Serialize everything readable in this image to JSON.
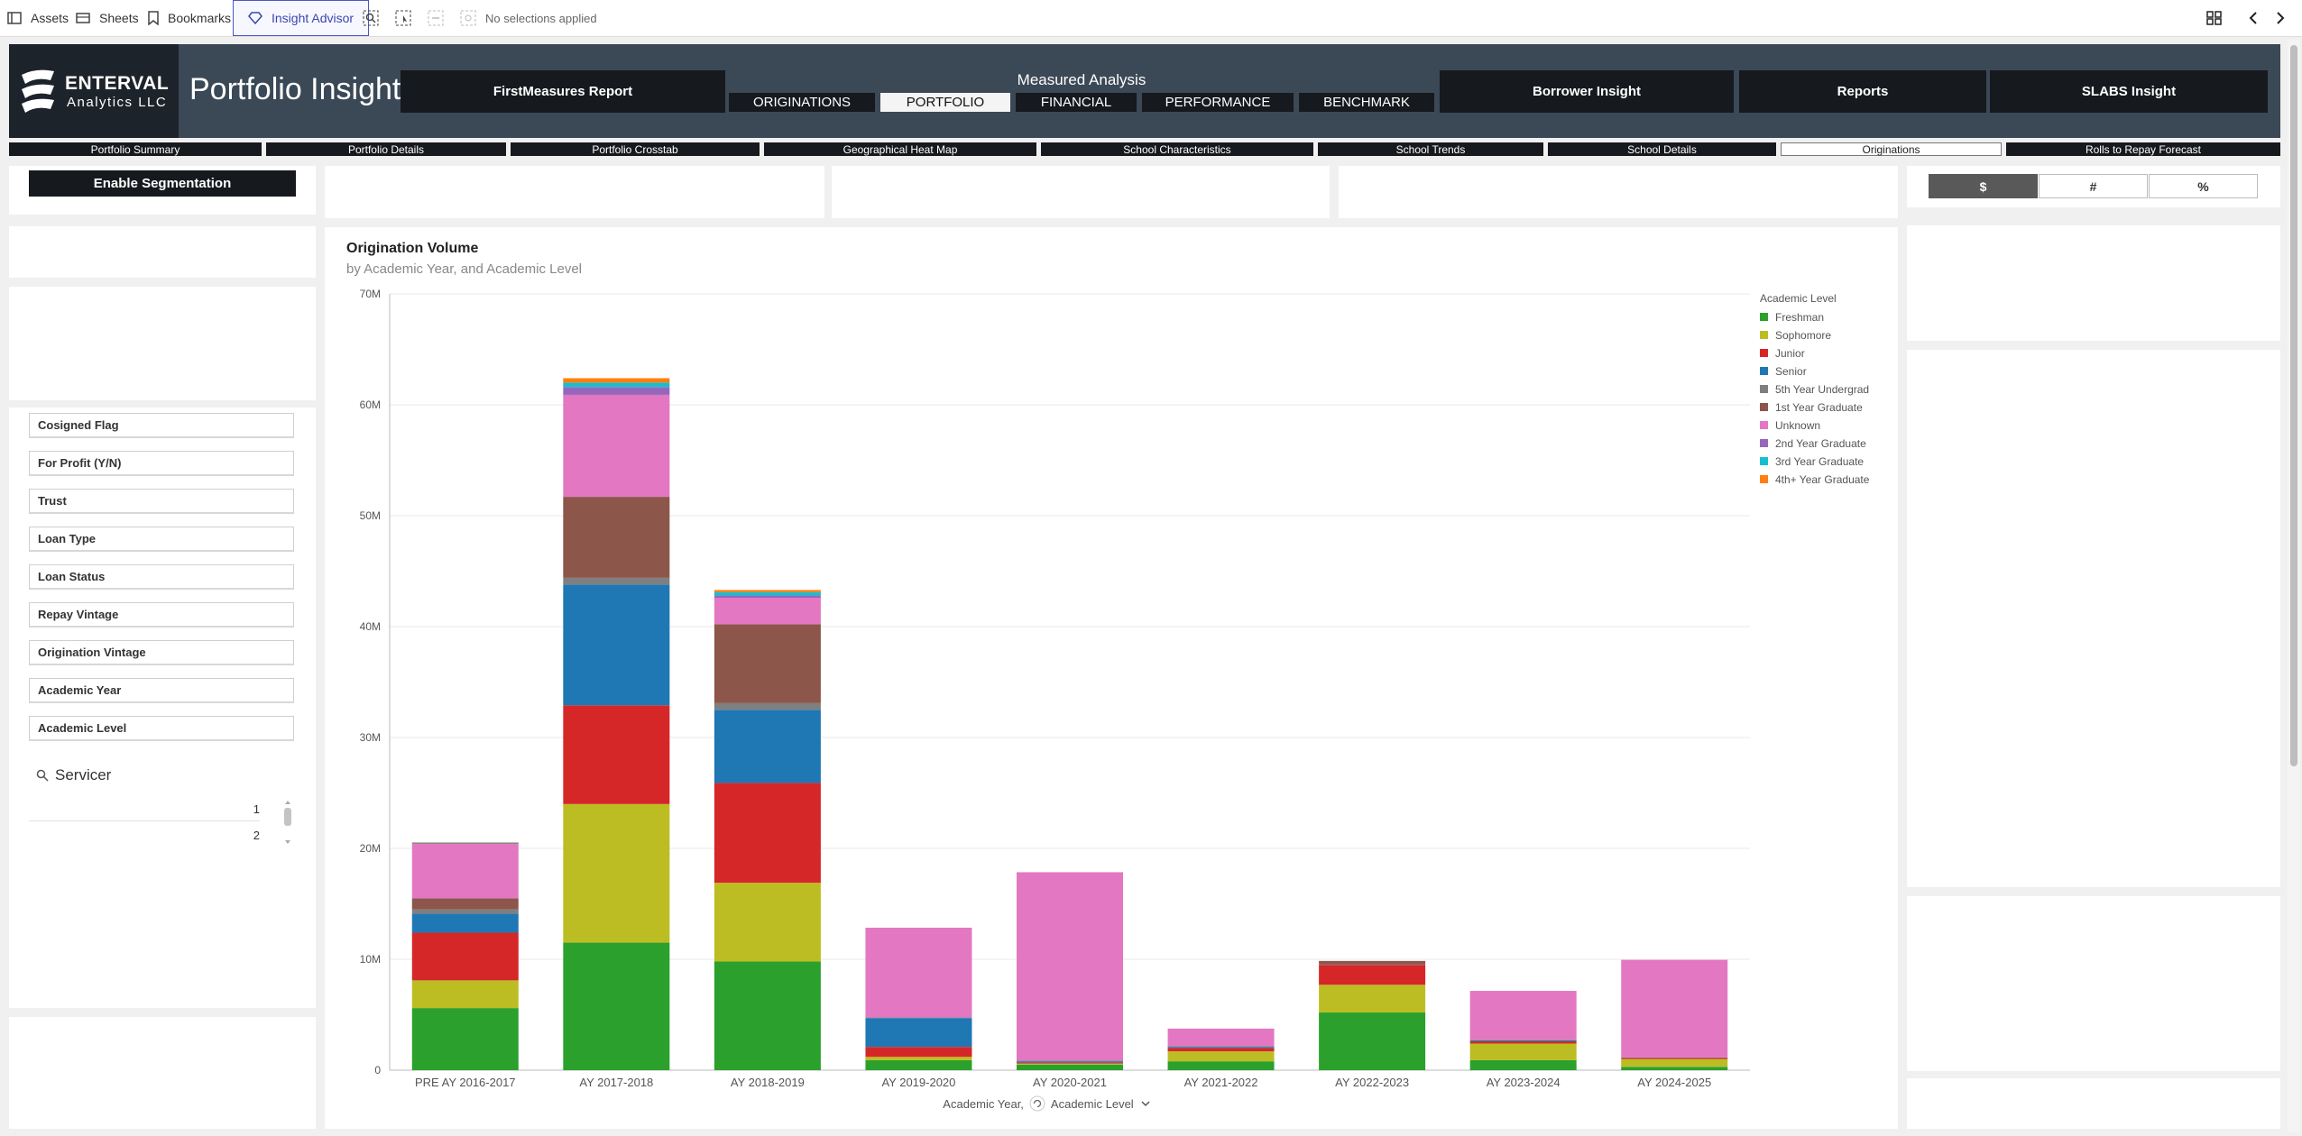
{
  "toolbar": {
    "assets": "Assets",
    "sheets": "Sheets",
    "bookmarks": "Bookmarks",
    "insight_advisor": "Insight Advisor",
    "selections": "No selections applied"
  },
  "brand": {
    "company_line1": "ENTERVAL",
    "company_line2": "Analytics LLC",
    "app_title": "Portfolio Insight"
  },
  "nav": {
    "first_measures": "FirstMeasures Report",
    "measured_analysis": "Measured Analysis",
    "sub": [
      "ORIGINATIONS",
      "PORTFOLIO",
      "FINANCIAL",
      "PERFORMANCE",
      "BENCHMARK"
    ],
    "borrower_insight": "Borrower Insight",
    "reports": "Reports",
    "slabs_insight": "SLABS Insight"
  },
  "tabs": [
    "Portfolio Summary",
    "Portfolio Details",
    "Portfolio Crosstab",
    "Geographical Heat Map",
    "School Characteristics",
    "School Trends",
    "School Details",
    "Originations",
    "Rolls to Repay Forecast"
  ],
  "sidebar": {
    "enable_segmentation": "Enable Segmentation",
    "filters": [
      "Cosigned Flag",
      "For Profit (Y/N)",
      "Trust",
      "Loan Type",
      "Loan Status",
      "Repay Vintage",
      "Origination Vintage",
      "Academic Year",
      "Academic Level"
    ],
    "servicer_title": "Servicer",
    "servicer_values": [
      "1",
      "2"
    ]
  },
  "toggles": [
    "$",
    "#",
    "%"
  ],
  "chart_data": {
    "type": "bar",
    "stacked": true,
    "title": "Origination Volume",
    "subtitle": "by Academic Year, and Academic Level",
    "xlabel": "Academic Year,",
    "xlabel_dim2": "Academic Level",
    "legend_title": "Academic Level",
    "legend_position": "top-right",
    "ylim": [
      0,
      70000000
    ],
    "y_ticks": [
      "0",
      "10M",
      "20M",
      "30M",
      "40M",
      "50M",
      "60M",
      "70M"
    ],
    "grid": true,
    "categories": [
      "PRE AY 2016-2017",
      "AY 2017-2018",
      "AY 2018-2019",
      "AY 2019-2020",
      "AY 2020-2021",
      "AY 2021-2022",
      "AY 2022-2023",
      "AY 2023-2024",
      "AY 2024-2025"
    ],
    "series": [
      {
        "name": "Freshman",
        "color": "#2ca02c",
        "values": [
          5.6,
          11.5,
          9.8,
          0.9,
          0.5,
          0.8,
          5.2,
          0.9,
          0.3
        ]
      },
      {
        "name": "Sophomore",
        "color": "#bcbd22",
        "values": [
          2.5,
          12.5,
          7.1,
          0.3,
          0.1,
          0.9,
          2.5,
          1.5,
          0.7
        ]
      },
      {
        "name": "Junior",
        "color": "#d62728",
        "values": [
          4.3,
          8.9,
          9.0,
          0.9,
          0.1,
          0.3,
          1.8,
          0.2,
          0.1
        ]
      },
      {
        "name": "Senior",
        "color": "#1f77b4",
        "values": [
          1.7,
          10.9,
          6.6,
          2.6,
          0.1,
          0.1,
          0.0,
          0.1,
          0.0
        ]
      },
      {
        "name": "5th Year Undergrad",
        "color": "#7f7f7f",
        "values": [
          0.4,
          0.6,
          0.6,
          0.05,
          0.05,
          0.05,
          0.05,
          0.05,
          0.05
        ]
      },
      {
        "name": "1st Year Graduate",
        "color": "#8c564b",
        "values": [
          1.0,
          7.3,
          7.1,
          0.0,
          0.0,
          0.0,
          0.3,
          0.0,
          0.0
        ]
      },
      {
        "name": "Unknown",
        "color": "#e377c2",
        "values": [
          4.9,
          9.2,
          2.4,
          8.1,
          17.0,
          1.6,
          0.0,
          4.4,
          8.8
        ]
      },
      {
        "name": "2nd Year Graduate",
        "color": "#9467bd",
        "values": [
          0.05,
          0.7,
          0.2,
          0.0,
          0.0,
          0.0,
          0.0,
          0.0,
          0.0
        ]
      },
      {
        "name": "3rd Year Graduate",
        "color": "#17becf",
        "values": [
          0.05,
          0.4,
          0.3,
          0.0,
          0.0,
          0.0,
          0.0,
          0.0,
          0.0
        ]
      },
      {
        "name": "4th+ Year Graduate",
        "color": "#ff7f0e",
        "values": [
          0.05,
          0.4,
          0.2,
          0.0,
          0.0,
          0.0,
          0.0,
          0.0,
          0.0
        ]
      }
    ],
    "value_unit": "M"
  }
}
